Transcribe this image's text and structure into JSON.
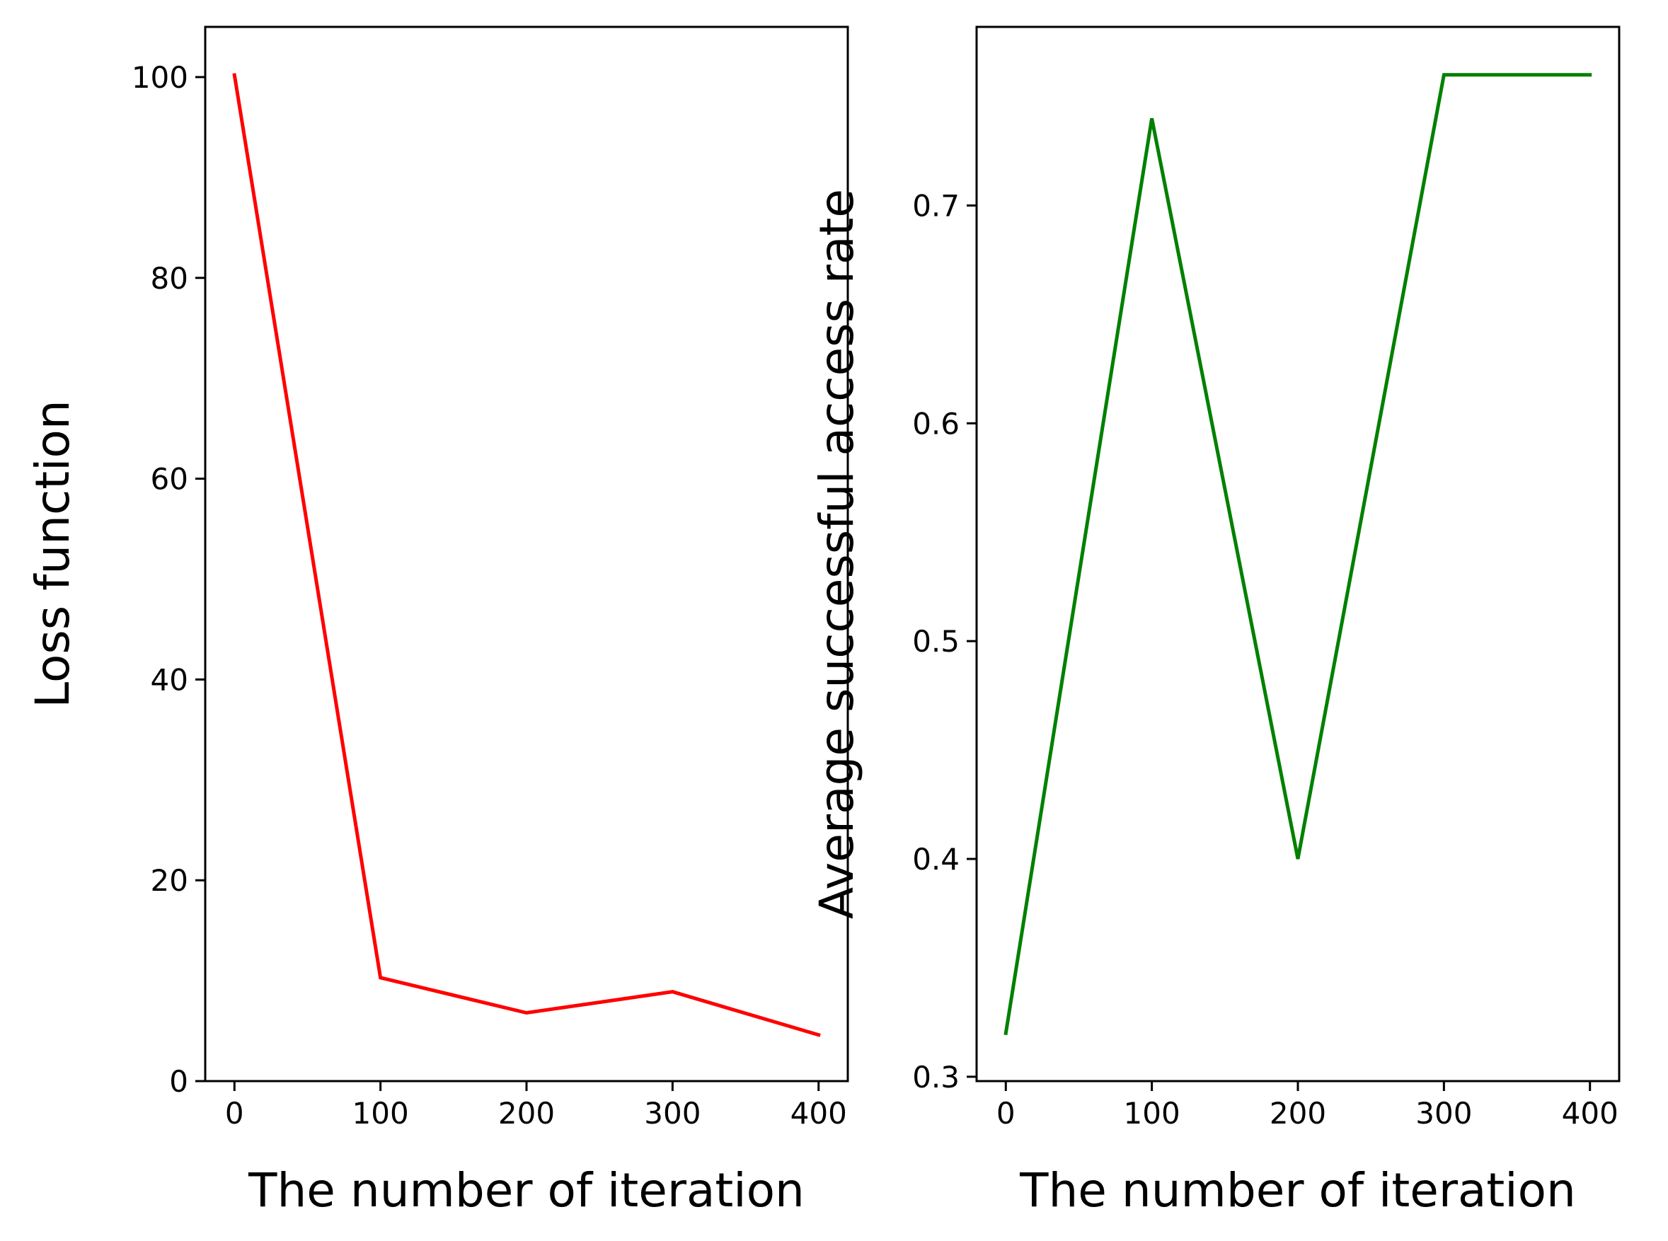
{
  "chart_data": [
    {
      "type": "line",
      "title": "",
      "xlabel": "The number of iteration",
      "ylabel": "Loss function",
      "x": [
        0,
        100,
        200,
        300,
        400
      ],
      "series": [
        {
          "values": [
            100.2,
            10.3,
            6.8,
            8.9,
            4.6
          ],
          "color": "#ff0000"
        }
      ],
      "xlim": [
        -20,
        420
      ],
      "ylim": [
        0,
        105
      ],
      "xticks": [
        0,
        100,
        200,
        300,
        400
      ],
      "xtick_labels": [
        "0",
        "100",
        "200",
        "300",
        "400"
      ],
      "yticks": [
        0,
        20,
        40,
        60,
        80,
        100
      ],
      "ytick_labels": [
        "0",
        "20",
        "40",
        "60",
        "80",
        "100"
      ],
      "grid": false,
      "legend": "none"
    },
    {
      "type": "line",
      "title": "",
      "xlabel": "The number of iteration",
      "ylabel": "Average successful access rate",
      "x": [
        0,
        100,
        200,
        300,
        400
      ],
      "series": [
        {
          "values": [
            0.32,
            0.74,
            0.4,
            0.76,
            0.76
          ],
          "color": "#008000"
        }
      ],
      "xlim": [
        -20,
        420
      ],
      "ylim": [
        0.298,
        0.782
      ],
      "xticks": [
        0,
        100,
        200,
        300,
        400
      ],
      "xtick_labels": [
        "0",
        "100",
        "200",
        "300",
        "400"
      ],
      "yticks": [
        0.3,
        0.4,
        0.5,
        0.6,
        0.7
      ],
      "ytick_labels": [
        "0.3",
        "0.4",
        "0.5",
        "0.6",
        "0.7"
      ],
      "grid": false,
      "legend": "none"
    }
  ]
}
